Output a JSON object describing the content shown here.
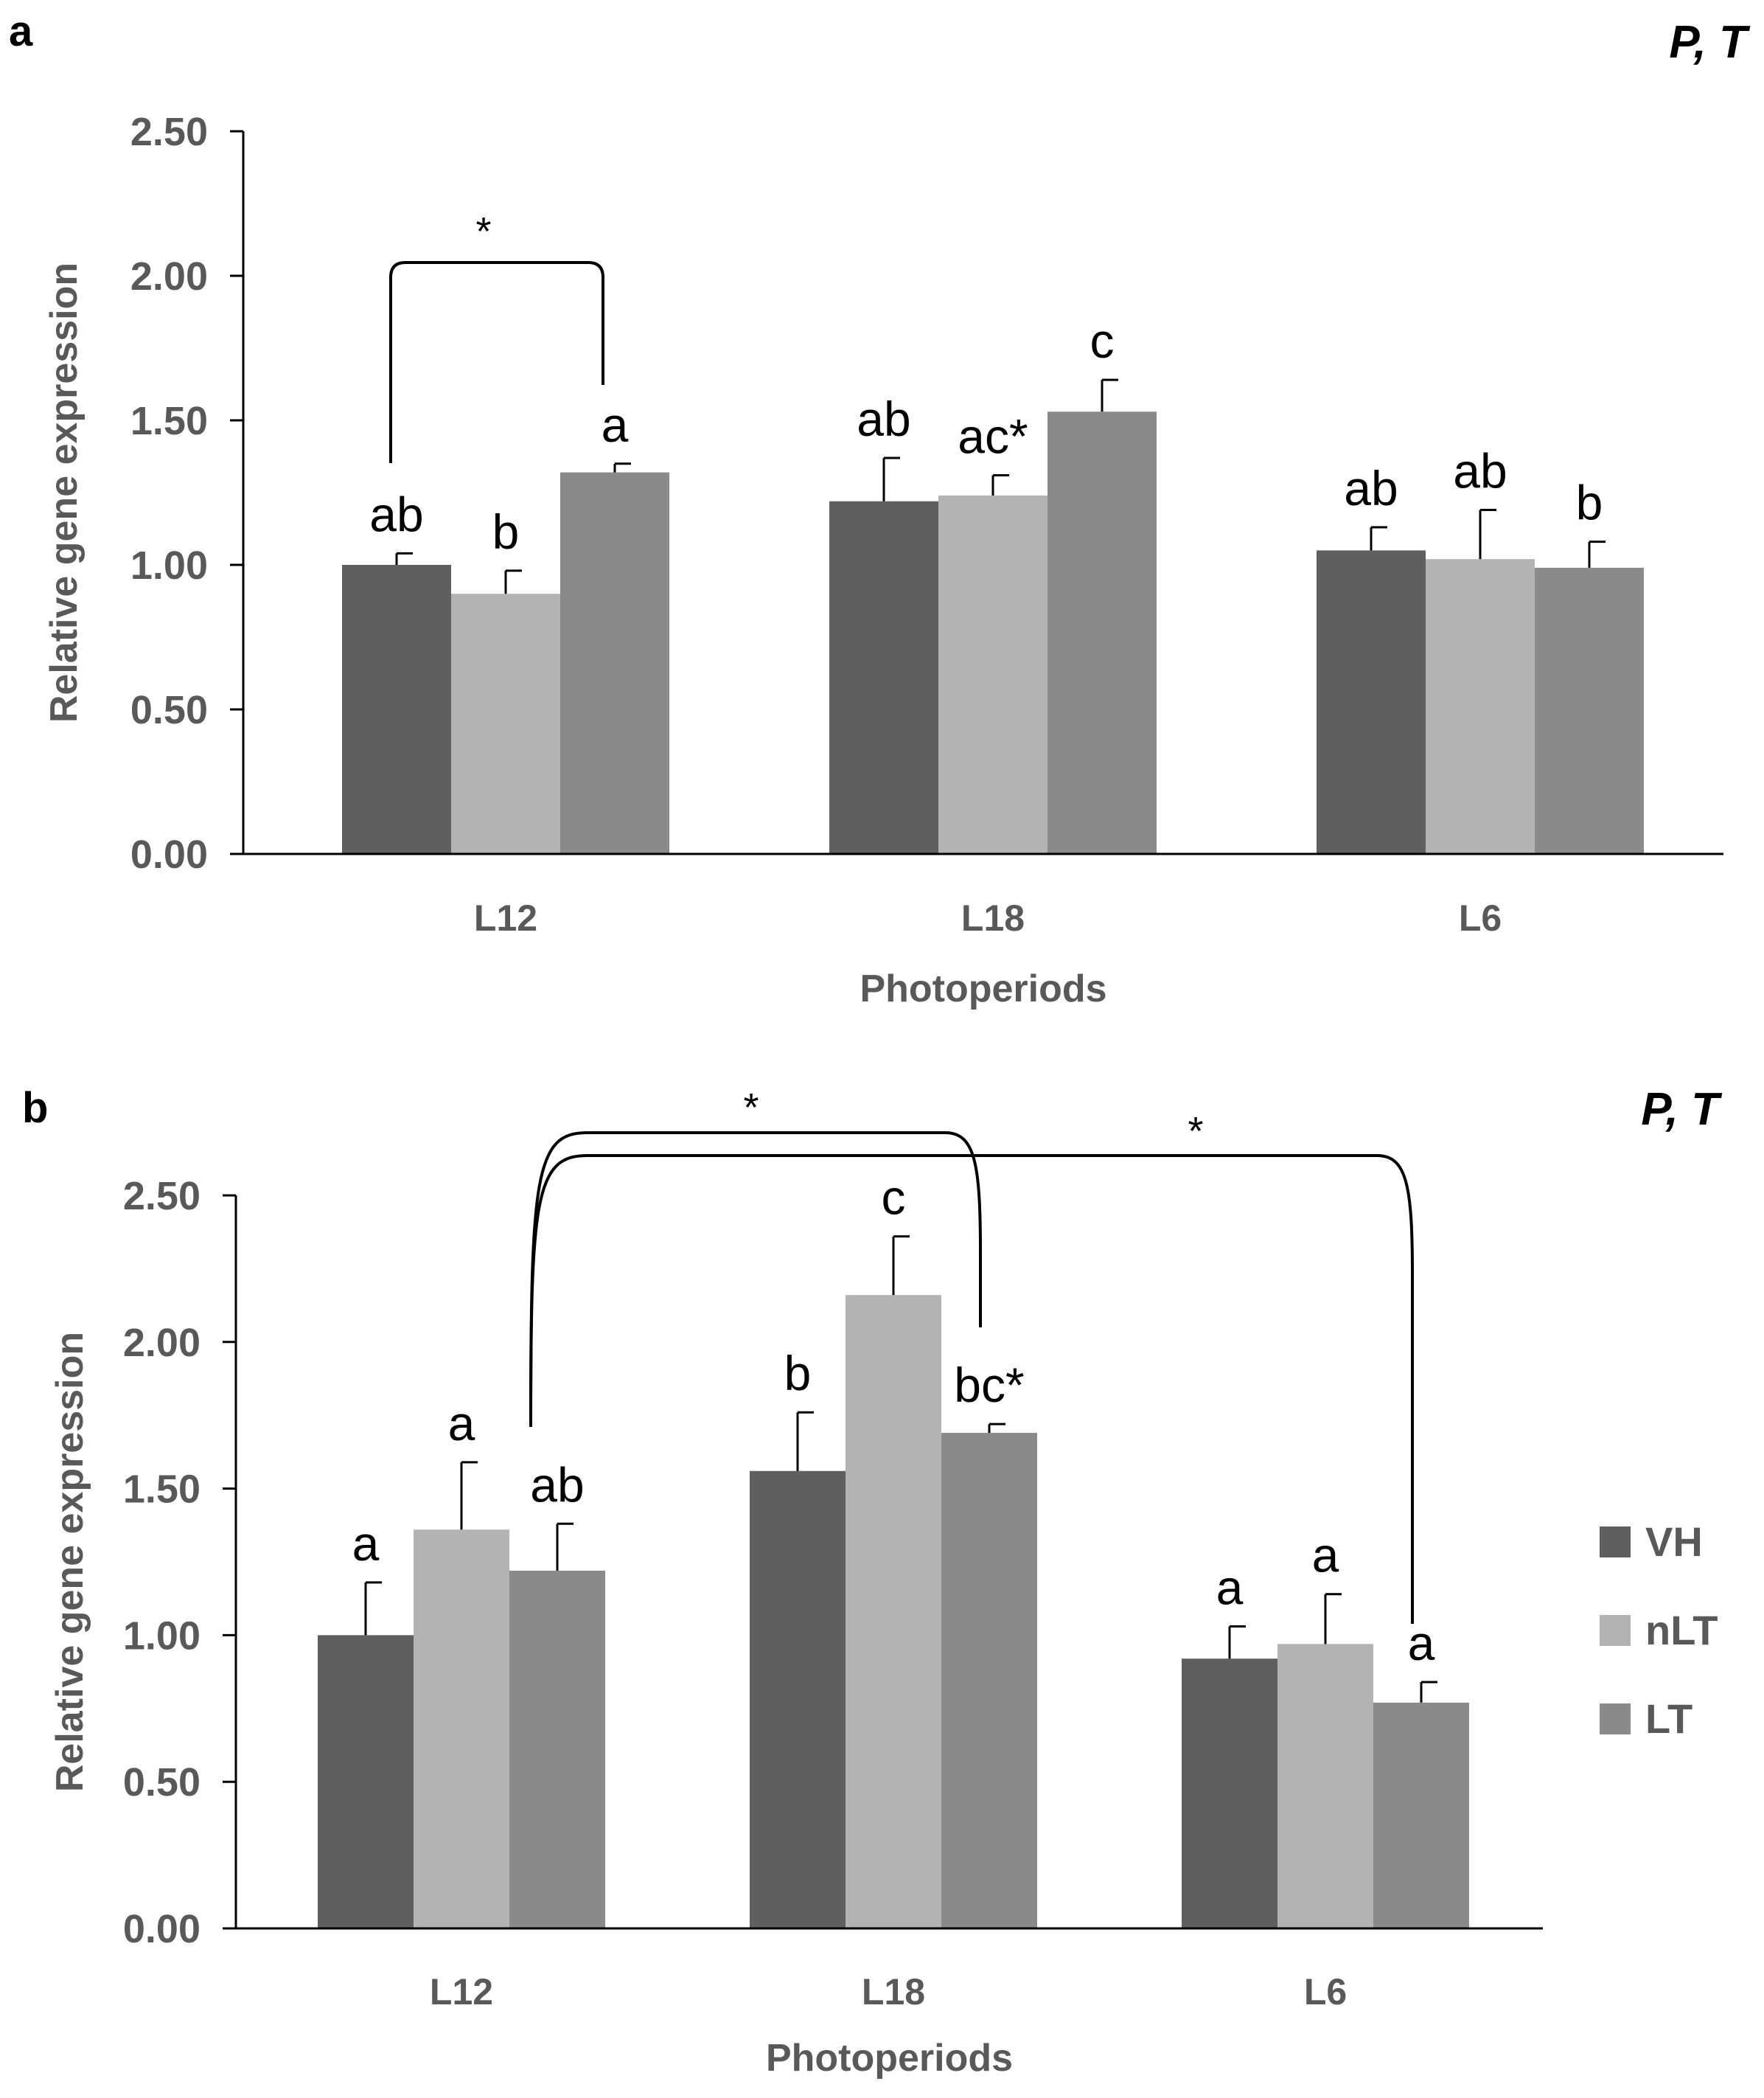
{
  "chart_data": [
    {
      "panel": "a",
      "type": "bar",
      "corner_label": "P, T",
      "categories": [
        "L12",
        "L18",
        "L6"
      ],
      "series": [
        {
          "name": "VH",
          "color": "#5f5f5f",
          "values": [
            1.0,
            1.22,
            1.05
          ],
          "errors": [
            0.04,
            0.15,
            0.08
          ],
          "labels": [
            "ab",
            "ab",
            "ab"
          ]
        },
        {
          "name": "nLT",
          "color": "#b3b3b3",
          "values": [
            0.9,
            1.24,
            1.02
          ],
          "errors": [
            0.08,
            0.07,
            0.17
          ],
          "labels": [
            "b",
            "ac*",
            "ab"
          ]
        },
        {
          "name": "LT",
          "color": "#8a8a8a",
          "values": [
            1.32,
            1.53,
            0.99
          ],
          "errors": [
            0.03,
            0.11,
            0.09
          ],
          "labels": [
            "a",
            "c",
            "b"
          ]
        }
      ],
      "xlabel": "Photoperiods",
      "ylabel": "Relative gene expression",
      "ylim": [
        0,
        2.5
      ],
      "yticks": [
        "0.00",
        "0.50",
        "1.00",
        "1.50",
        "2.00",
        "2.50"
      ],
      "brackets": [
        {
          "label": "*",
          "from": "L12 VH",
          "to": "L12 LT"
        }
      ]
    },
    {
      "panel": "b",
      "type": "bar",
      "corner_label": "P, T",
      "categories": [
        "L12",
        "L18",
        "L6"
      ],
      "series": [
        {
          "name": "VH",
          "color": "#5f5f5f",
          "values": [
            1.0,
            1.56,
            0.92
          ],
          "errors": [
            0.18,
            0.2,
            0.11
          ],
          "labels": [
            "a",
            "b",
            "a"
          ]
        },
        {
          "name": "nLT",
          "color": "#b3b3b3",
          "values": [
            1.36,
            2.16,
            0.97
          ],
          "errors": [
            0.23,
            0.2,
            0.17
          ],
          "labels": [
            "a",
            "c",
            "a"
          ]
        },
        {
          "name": "LT",
          "color": "#8a8a8a",
          "values": [
            1.22,
            1.69,
            0.77
          ],
          "errors": [
            0.16,
            0.03,
            0.07
          ],
          "labels": [
            "ab",
            "bc*",
            "a"
          ]
        }
      ],
      "xlabel": "Photoperiods",
      "ylabel": "Relative gene expression",
      "ylim": [
        0,
        2.5
      ],
      "yticks": [
        "0.00",
        "0.50",
        "1.00",
        "1.50",
        "2.00",
        "2.50"
      ],
      "brackets": [
        {
          "label": "*",
          "from": "L12 LT",
          "to": "L18 LT"
        },
        {
          "label": "*",
          "from": "L12 LT",
          "to": "L6 LT"
        }
      ],
      "legend": [
        "VH",
        "nLT",
        "LT"
      ]
    }
  ]
}
